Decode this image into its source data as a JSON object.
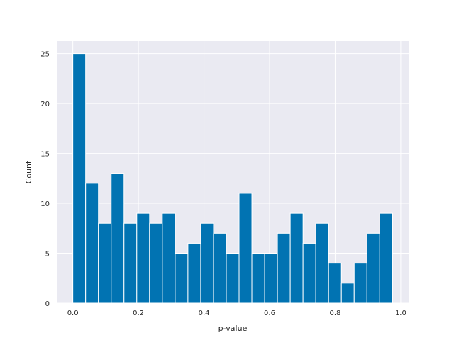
{
  "chart_data": {
    "type": "bar",
    "title": "",
    "xlabel": "p-value",
    "ylabel": "Count",
    "bin_edges": [
      0.0,
      0.039,
      0.078,
      0.117,
      0.156,
      0.195,
      0.234,
      0.273,
      0.312,
      0.351,
      0.39,
      0.429,
      0.468,
      0.507,
      0.546,
      0.585,
      0.624,
      0.663,
      0.702,
      0.741,
      0.78,
      0.819,
      0.858,
      0.897,
      0.936,
      0.975
    ],
    "values": [
      25,
      12,
      8,
      13,
      8,
      9,
      8,
      9,
      5,
      6,
      8,
      7,
      5,
      11,
      5,
      5,
      7,
      9,
      6,
      8,
      4,
      2,
      4,
      7,
      9
    ],
    "xlim": [
      -0.049,
      1.024
    ],
    "ylim": [
      0,
      26.25
    ],
    "xticks": [
      0.0,
      0.2,
      0.4,
      0.6,
      0.8,
      1.0
    ],
    "xtick_labels": [
      "0.0",
      "0.2",
      "0.4",
      "0.6",
      "0.8",
      "1.0"
    ],
    "yticks": [
      0,
      5,
      10,
      15,
      20,
      25
    ],
    "ytick_labels": [
      "0",
      "5",
      "10",
      "15",
      "20",
      "25"
    ],
    "grid": true,
    "colors": {
      "bar": "#0173b2",
      "plot_background": "#eaeaf2",
      "grid": "#ffffff",
      "text": "#262626"
    }
  }
}
